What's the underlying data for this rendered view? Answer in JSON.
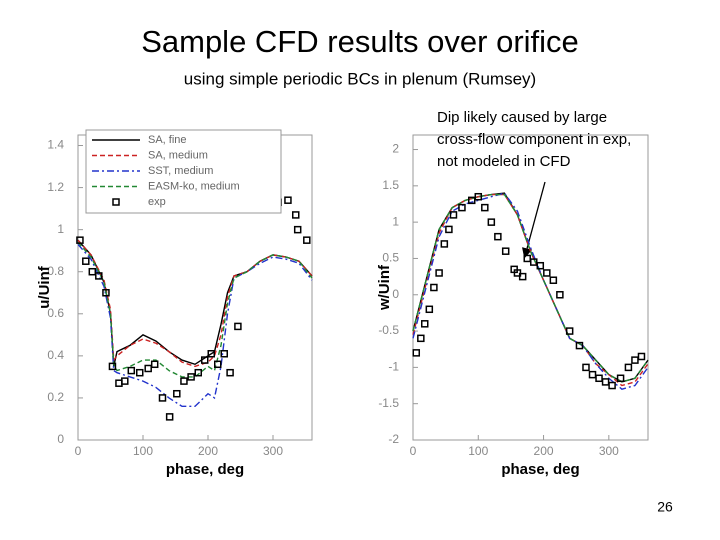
{
  "header": {
    "title": "Sample CFD results over orifice",
    "subtitle": "using simple periodic BCs in plenum (Rumsey)"
  },
  "page_number": "26",
  "chart_data": [
    {
      "type": "line",
      "xlabel": "phase, deg",
      "ylabel": "u/Uinf",
      "xlim": [
        0,
        360
      ],
      "ylim": [
        0,
        1.45
      ],
      "xticks": [
        0,
        100,
        200,
        300
      ],
      "yticks": [
        0,
        0.2,
        0.4,
        0.6,
        0.8,
        1,
        1.2,
        1.4
      ],
      "legend": "upper left",
      "x": [
        0,
        20,
        40,
        50,
        55,
        60,
        80,
        100,
        120,
        140,
        160,
        180,
        200,
        210,
        220,
        230,
        240,
        260,
        280,
        300,
        320,
        340,
        360
      ],
      "series": [
        {
          "name": "SA, fine",
          "color": "#000000",
          "style": "solid",
          "values": [
            0.95,
            0.88,
            0.75,
            0.6,
            0.35,
            0.42,
            0.45,
            0.5,
            0.47,
            0.42,
            0.38,
            0.36,
            0.4,
            0.42,
            0.55,
            0.7,
            0.78,
            0.8,
            0.85,
            0.88,
            0.87,
            0.85,
            0.78
          ]
        },
        {
          "name": "SA, medium",
          "color": "#cc2222",
          "style": "dashed",
          "values": [
            0.95,
            0.88,
            0.76,
            0.62,
            0.38,
            0.4,
            0.45,
            0.48,
            0.46,
            0.42,
            0.37,
            0.35,
            0.37,
            0.4,
            0.5,
            0.68,
            0.78,
            0.8,
            0.85,
            0.88,
            0.87,
            0.85,
            0.78
          ]
        },
        {
          "name": "SST, medium",
          "color": "#2233cc",
          "style": "dashdot",
          "values": [
            0.93,
            0.86,
            0.73,
            0.58,
            0.33,
            0.32,
            0.3,
            0.28,
            0.25,
            0.2,
            0.16,
            0.16,
            0.22,
            0.2,
            0.35,
            0.6,
            0.77,
            0.8,
            0.84,
            0.87,
            0.86,
            0.84,
            0.76
          ]
        },
        {
          "name": "EASM-ko, medium",
          "color": "#228833",
          "style": "dashed",
          "values": [
            0.94,
            0.87,
            0.75,
            0.6,
            0.36,
            0.33,
            0.35,
            0.38,
            0.38,
            0.33,
            0.3,
            0.3,
            0.35,
            0.33,
            0.45,
            0.65,
            0.77,
            0.8,
            0.85,
            0.88,
            0.87,
            0.85,
            0.77
          ]
        },
        {
          "name": "exp",
          "color": "#000000",
          "style": "none",
          "marker": "square",
          "x": [
            3,
            12,
            22,
            32,
            43,
            53,
            63,
            72,
            82,
            95,
            108,
            118,
            130,
            141,
            152,
            163,
            174,
            185,
            195,
            205,
            215,
            225,
            234,
            246,
            295,
            308,
            323,
            335,
            338,
            352
          ],
          "values": [
            0.95,
            0.85,
            0.8,
            0.78,
            0.7,
            0.35,
            0.27,
            0.28,
            0.33,
            0.32,
            0.34,
            0.36,
            0.2,
            0.11,
            0.22,
            0.28,
            0.3,
            0.32,
            0.38,
            0.41,
            0.36,
            0.41,
            0.32,
            0.54,
            1.11,
            1.13,
            1.14,
            1.07,
            1.0,
            0.95
          ]
        }
      ]
    },
    {
      "type": "line",
      "xlabel": "phase, deg",
      "ylabel": "w/Uinf",
      "xlim": [
        0,
        360
      ],
      "ylim": [
        -2,
        2.2
      ],
      "xticks": [
        0,
        100,
        200,
        300
      ],
      "yticks": [
        -2,
        -1.5,
        -1,
        -0.5,
        0,
        0.5,
        1,
        1.5,
        2
      ],
      "annotation": [
        "Dip likely caused by large",
        "cross-flow component in exp,",
        "not modeled in CFD"
      ],
      "x": [
        0,
        20,
        40,
        60,
        80,
        100,
        120,
        140,
        160,
        180,
        200,
        220,
        240,
        260,
        280,
        300,
        320,
        340,
        360
      ],
      "series": [
        {
          "color": "#000000",
          "style": "solid",
          "values": [
            -0.5,
            0.2,
            0.9,
            1.2,
            1.3,
            1.35,
            1.38,
            1.4,
            1.1,
            0.6,
            0.2,
            -0.2,
            -0.6,
            -0.7,
            -0.9,
            -1.1,
            -1.2,
            -1.15,
            -0.9
          ]
        },
        {
          "color": "#cc2222",
          "style": "dashed",
          "values": [
            -0.55,
            0.15,
            0.85,
            1.2,
            1.3,
            1.35,
            1.38,
            1.38,
            1.1,
            0.6,
            0.2,
            -0.2,
            -0.6,
            -0.7,
            -0.95,
            -1.1,
            -1.25,
            -1.2,
            -0.95
          ]
        },
        {
          "color": "#2233cc",
          "style": "dashdot",
          "values": [
            -0.6,
            0.1,
            0.8,
            1.15,
            1.25,
            1.3,
            1.35,
            1.4,
            1.15,
            0.65,
            0.2,
            -0.2,
            -0.6,
            -0.7,
            -0.95,
            -1.15,
            -1.3,
            -1.25,
            -1.0
          ]
        },
        {
          "color": "#228833",
          "style": "dashed",
          "values": [
            -0.5,
            0.2,
            0.9,
            1.2,
            1.3,
            1.35,
            1.38,
            1.38,
            1.1,
            0.6,
            0.2,
            -0.2,
            -0.6,
            -0.7,
            -0.9,
            -1.1,
            -1.2,
            -1.15,
            -0.9
          ]
        },
        {
          "color": "#000000",
          "style": "none",
          "marker": "square",
          "x": [
            5,
            12,
            18,
            25,
            32,
            40,
            48,
            55,
            62,
            75,
            90,
            100,
            110,
            120,
            130,
            142,
            155,
            160,
            168,
            175,
            185,
            195,
            205,
            215,
            225,
            240,
            255,
            265,
            275,
            285,
            295,
            305,
            318,
            330,
            340,
            350
          ],
          "values": [
            -0.8,
            -0.6,
            -0.4,
            -0.2,
            0.1,
            0.3,
            0.7,
            0.9,
            1.1,
            1.2,
            1.3,
            1.35,
            1.2,
            1.0,
            0.8,
            0.6,
            0.35,
            0.3,
            0.25,
            0.5,
            0.45,
            0.4,
            0.3,
            0.2,
            0.0,
            -0.5,
            -0.7,
            -1.0,
            -1.1,
            -1.15,
            -1.2,
            -1.25,
            -1.15,
            -1.0,
            -0.9,
            -0.85
          ]
        }
      ]
    }
  ]
}
